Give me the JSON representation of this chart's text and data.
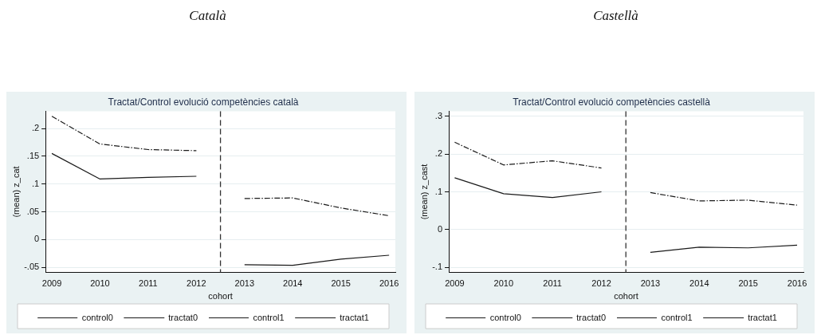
{
  "chart_data": [
    {
      "type": "line",
      "title": "Català",
      "subtitle": "Tractat/Control evolució competències català",
      "xlabel": "cohort",
      "ylabel": "(mean) z_cat",
      "x": [
        2009,
        2010,
        2011,
        2012,
        2013,
        2014,
        2015,
        2016
      ],
      "series": [
        {
          "name": "control0",
          "color": "#1a1a1a",
          "line_style": "dashed",
          "values": [
            0.222,
            0.172,
            0.162,
            0.16,
            null,
            null,
            null,
            null
          ]
        },
        {
          "name": "tractat0",
          "color": "#1a1a1a",
          "line_style": "solid",
          "values": [
            0.155,
            0.109,
            0.112,
            0.114,
            null,
            null,
            null,
            null
          ]
        },
        {
          "name": "control1",
          "color": "#1a1a1a",
          "line_style": "dashed",
          "values": [
            null,
            null,
            null,
            null,
            0.074,
            0.075,
            0.057,
            0.043
          ]
        },
        {
          "name": "tractat1",
          "color": "#1a1a1a",
          "line_style": "solid",
          "values": [
            null,
            null,
            null,
            null,
            -0.045,
            -0.046,
            -0.035,
            -0.028
          ]
        }
      ],
      "xlim": [
        2008.87,
        2016.13
      ],
      "xticks": [
        2009,
        2010,
        2011,
        2012,
        2013,
        2014,
        2015,
        2016
      ],
      "ylim": [
        -0.059,
        0.231
      ],
      "yticks": [
        {
          "value": -0.05,
          "label": "-.05"
        },
        {
          "value": 0,
          "label": "0"
        },
        {
          "value": 0.05,
          "label": ".05"
        },
        {
          "value": 0.1,
          "label": ".1"
        },
        {
          "value": 0.15,
          "label": ".15"
        },
        {
          "value": 0.2,
          "label": ".2"
        }
      ],
      "grid": "y",
      "legend": "bottom",
      "marker": "none",
      "ref_lines": [
        {
          "axis": "x",
          "value": 2012.5,
          "color": "#333333",
          "line_style": "dashed"
        }
      ]
    },
    {
      "type": "line",
      "title": "Castellà",
      "subtitle": "Tractat/Control evolució competències castellà",
      "xlabel": "cohort",
      "ylabel": "(mean) z_cast",
      "x": [
        2009,
        2010,
        2011,
        2012,
        2013,
        2014,
        2015,
        2016
      ],
      "series": [
        {
          "name": "control0",
          "color": "#1a1a1a",
          "line_style": "dashed",
          "values": [
            0.231,
            0.171,
            0.182,
            0.163,
            null,
            null,
            null,
            null
          ]
        },
        {
          "name": "tractat0",
          "color": "#1a1a1a",
          "line_style": "solid",
          "values": [
            0.137,
            0.095,
            0.085,
            0.1,
            null,
            null,
            null,
            null
          ]
        },
        {
          "name": "control1",
          "color": "#1a1a1a",
          "line_style": "dashed",
          "values": [
            null,
            null,
            null,
            null,
            0.098,
            0.076,
            0.078,
            0.065
          ]
        },
        {
          "name": "tractat1",
          "color": "#1a1a1a",
          "line_style": "solid",
          "values": [
            null,
            null,
            null,
            null,
            -0.06,
            -0.046,
            -0.048,
            -0.041
          ]
        }
      ],
      "xlim": [
        2008.88,
        2016.13
      ],
      "xticks": [
        2009,
        2010,
        2011,
        2012,
        2013,
        2014,
        2015,
        2016
      ],
      "ylim": [
        -0.113,
        0.313
      ],
      "yticks": [
        {
          "value": -0.1,
          "label": "-.1"
        },
        {
          "value": 0,
          "label": "0"
        },
        {
          "value": 0.1,
          "label": ".1"
        },
        {
          "value": 0.2,
          "label": ".2"
        },
        {
          "value": 0.3,
          "label": ".3"
        }
      ],
      "grid": "y",
      "legend": "bottom",
      "marker": "none",
      "ref_lines": [
        {
          "axis": "x",
          "value": 2012.5,
          "color": "#333333",
          "line_style": "dashed"
        }
      ]
    }
  ]
}
